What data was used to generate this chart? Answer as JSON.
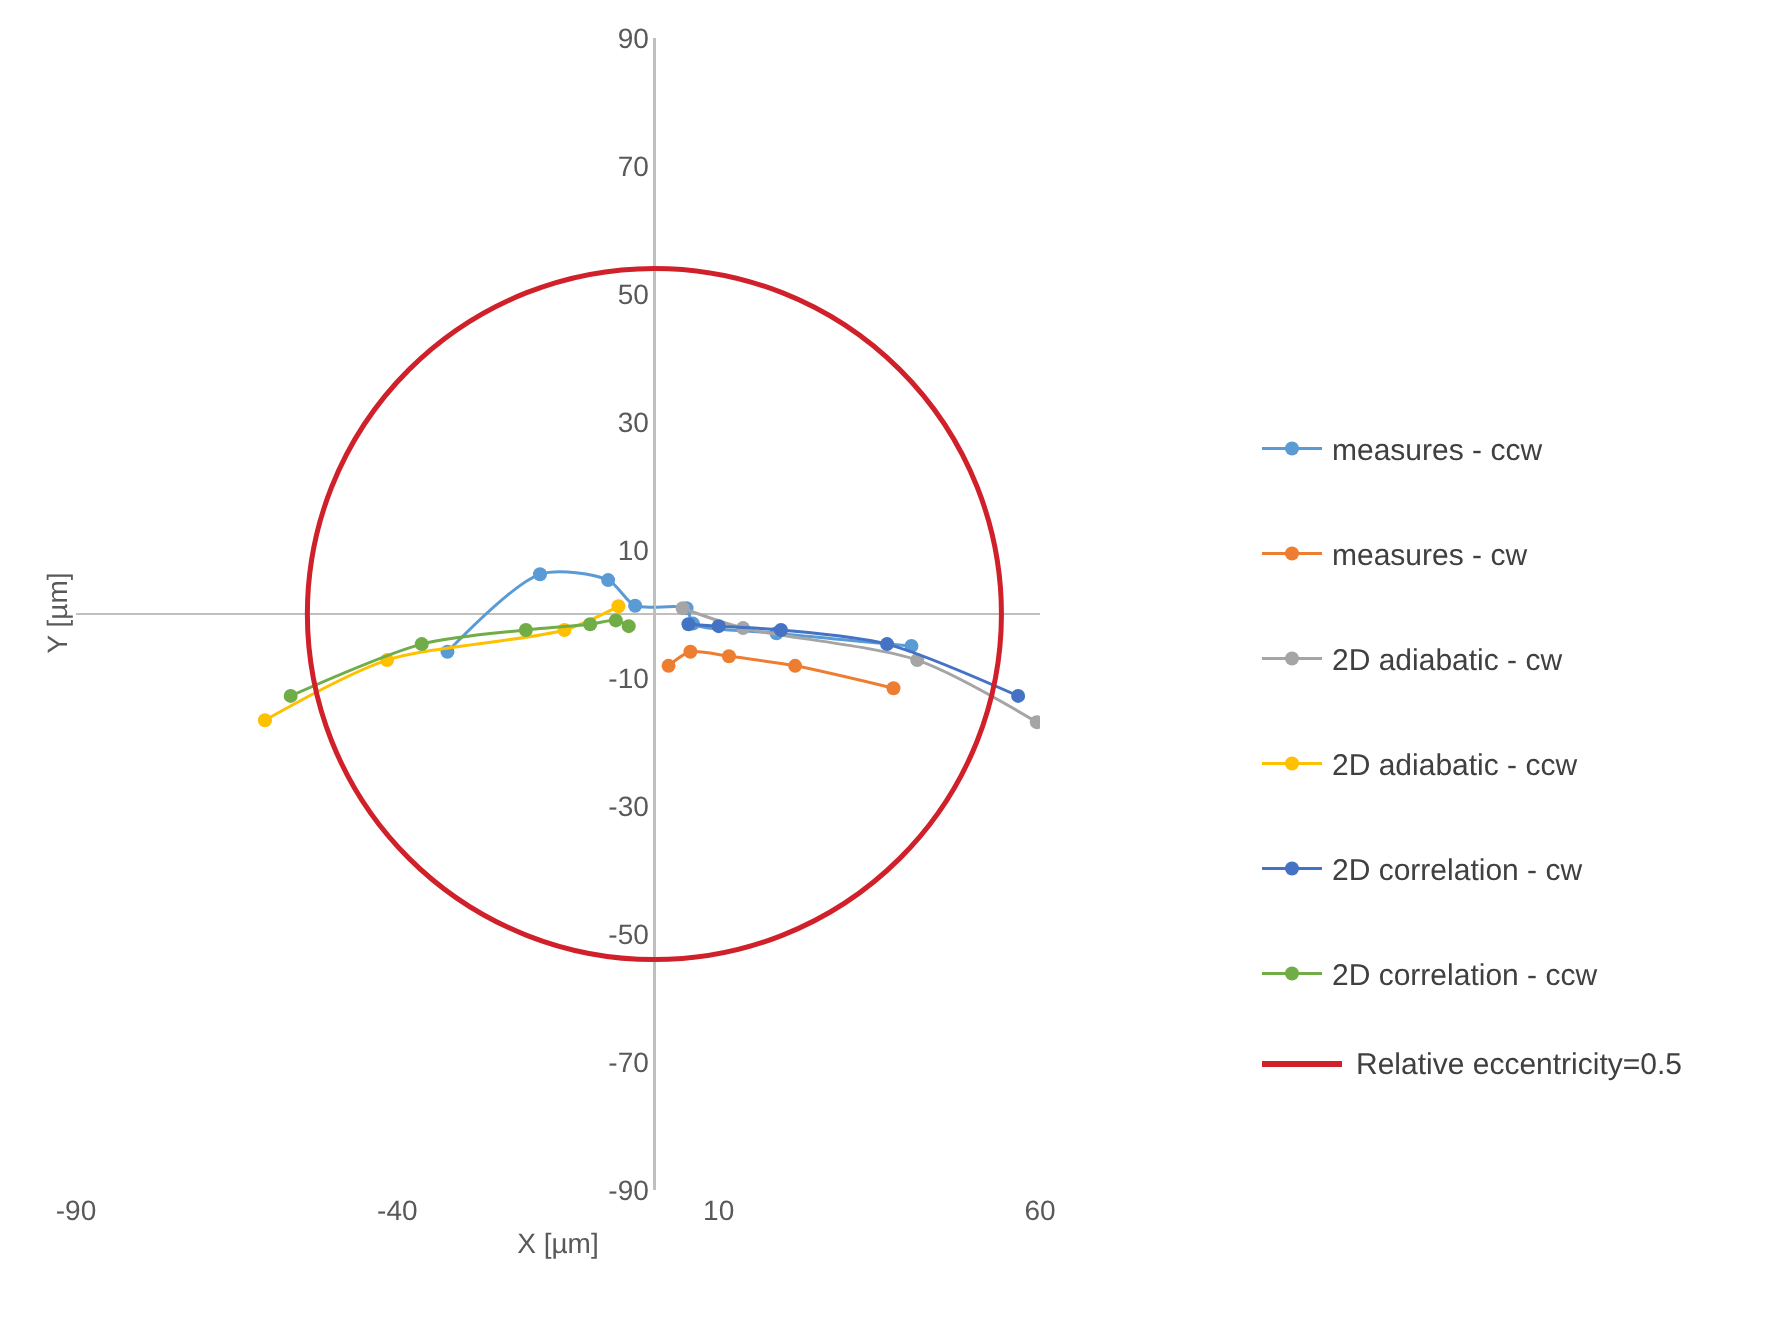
{
  "chart_data": {
    "type": "line",
    "xlabel": "X [µm]",
    "ylabel": "Y [µm]",
    "xlim": [
      -90,
      60
    ],
    "xticks": [
      -90,
      -40,
      10,
      60
    ],
    "ylim": [
      -90,
      90
    ],
    "yticks": [
      -90,
      -70,
      -50,
      -30,
      -10,
      10,
      30,
      50,
      70,
      90
    ],
    "grid": false,
    "legend": "right",
    "marker": "circle",
    "line_style": "solid",
    "annotations": [
      "Relative eccentricity=0.5"
    ],
    "series": [
      {
        "name": "measures - ccw",
        "color": "#5b9bd5",
        "x": [
          40,
          19,
          6,
          5,
          -3,
          -7.2,
          -17.8,
          -32.2
        ],
        "values": [
          -5,
          -3,
          -1.5,
          0.9,
          1.3,
          5.3,
          6.2,
          -5.9
        ]
      },
      {
        "name": "measures - cw",
        "color": "#ed7d31",
        "x": [
          2.2,
          5.6,
          11.6,
          21.9,
          37.2
        ],
        "values": [
          -8.1,
          -5.9,
          -6.6,
          -8.1,
          -11.6
        ]
      },
      {
        "name": "2D adiabatic - cw",
        "color": "#a5a5a5",
        "x": [
          4.4,
          13.8,
          40.9,
          59.5
        ],
        "values": [
          0.9,
          -2.2,
          -7.2,
          -16.9
        ]
      },
      {
        "name": "2D adiabatic - ccw",
        "color": "#ffc000",
        "x": [
          -60.6,
          -41.6,
          -14,
          -5.6
        ],
        "values": [
          -16.6,
          -7.2,
          -2.5,
          1.2
        ]
      },
      {
        "name": "2D correlation - cw",
        "color": "#4472c4",
        "x": [
          5.3,
          10,
          19.7,
          36.2,
          56.6
        ],
        "values": [
          -1.6,
          -1.9,
          -2.5,
          -4.7,
          -12.8
        ]
      },
      {
        "name": "2D correlation - ccw",
        "color": "#70ad47",
        "x": [
          -56.6,
          -36.2,
          -20,
          -10,
          -6,
          -4
        ],
        "values": [
          -12.8,
          -4.7,
          -2.5,
          -1.6,
          -1,
          -1.9
        ]
      }
    ]
  }
}
